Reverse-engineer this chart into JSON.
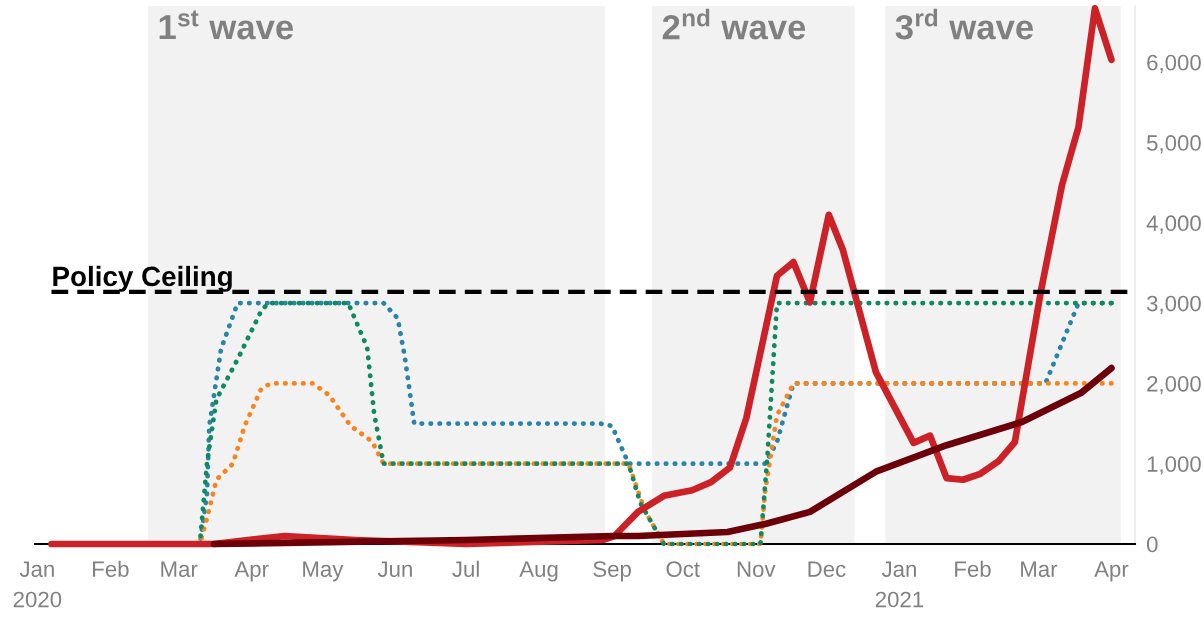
{
  "chart_data": {
    "type": "line",
    "xlim": [
      "2019-12-31",
      "2021-04-11"
    ],
    "xticks": [
      {
        "value": "2020-01-01",
        "label": "Jan\n2020"
      },
      {
        "value": "2020-02-01",
        "label": "Feb"
      },
      {
        "value": "2020-03-01",
        "label": "Mar"
      },
      {
        "value": "2020-04-01",
        "label": "Apr"
      },
      {
        "value": "2020-05-01",
        "label": "May"
      },
      {
        "value": "2020-06-01",
        "label": "Jun"
      },
      {
        "value": "2020-07-01",
        "label": "Jul"
      },
      {
        "value": "2020-08-01",
        "label": "Aug"
      },
      {
        "value": "2020-09-01",
        "label": "Sep"
      },
      {
        "value": "2020-10-01",
        "label": "Oct"
      },
      {
        "value": "2020-11-01",
        "label": "Nov"
      },
      {
        "value": "2020-12-01",
        "label": "Dec"
      },
      {
        "value": "2021-01-01",
        "label": "Jan\n2021"
      },
      {
        "value": "2021-02-01",
        "label": "Feb"
      },
      {
        "value": "2021-03-01",
        "label": "Mar"
      },
      {
        "value": "2021-04-01",
        "label": "Apr"
      }
    ],
    "ylim": [
      0,
      6700
    ],
    "yticks": [
      0,
      {
        "value": 1000,
        "label": "1,000"
      },
      {
        "value": 2000,
        "label": "2,000"
      },
      {
        "value": 3000,
        "label": "3,000"
      },
      {
        "value": 4000,
        "label": "4,000"
      },
      {
        "value": 5000,
        "label": "5,000"
      },
      {
        "value": 6000,
        "label": "6,000"
      }
    ],
    "grid": false,
    "legend": false,
    "bands": [
      {
        "axis": "x",
        "from": "2020-02-17",
        "to": "2020-08-29",
        "label": "1$^{st}$ wave",
        "color": "#f2f2f2"
      },
      {
        "axis": "x",
        "from": "2020-09-18",
        "to": "2020-12-13",
        "label": "2$^{nd}$ wave",
        "color": "#f2f2f2"
      },
      {
        "axis": "x",
        "from": "2020-12-26",
        "to": "2021-04-05",
        "label": "3$^{rd}$ wave",
        "color": "#f2f2f2"
      }
    ],
    "ref_lines": [
      {
        "axis": "y",
        "value": 3140,
        "label": "Policy Ceiling",
        "color": "#000000",
        "line_style": "dashed"
      }
    ],
    "series": [
      {
        "color": "#2a84a8",
        "line_style": "dotted",
        "x": [
          "2020-03-10",
          "2020-03-13",
          "2020-03-14",
          "2020-03-19",
          "2020-03-26",
          "2020-05-27",
          "2020-06-02",
          "2020-06-05",
          "2020-06-09",
          "2020-08-27",
          "2020-09-01",
          "2020-09-08",
          "2020-11-05",
          "2020-11-10",
          "2020-11-17",
          "2021-03-04",
          "2021-03-18",
          "2021-04-01"
        ],
        "values": [
          0,
          610,
          1470,
          2430,
          3000,
          3000,
          2810,
          2330,
          1500,
          1500,
          1470,
          1000,
          1000,
          1270,
          2000,
          2000,
          3000,
          3000
        ]
      },
      {
        "color": "#f5861f",
        "line_style": "dotted",
        "x": [
          "2020-03-10",
          "2020-03-13",
          "2020-03-17",
          "2020-03-24",
          "2020-03-29",
          "2020-04-05",
          "2020-04-09",
          "2020-04-27",
          "2020-05-04",
          "2020-05-13",
          "2020-05-22",
          "2020-05-27",
          "2020-09-08",
          "2020-09-15",
          "2020-09-23",
          "2020-11-03",
          "2020-11-05",
          "2020-11-10",
          "2020-11-17",
          "2021-04-01"
        ],
        "values": [
          0,
          320,
          800,
          1000,
          1470,
          1930,
          2000,
          2000,
          1850,
          1470,
          1280,
          1000,
          1000,
          410,
          0,
          0,
          660,
          1600,
          2000,
          2000
        ]
      },
      {
        "color": "#0f8a5f",
        "line_style": "dotted",
        "x": [
          "2020-03-10",
          "2020-03-13",
          "2020-03-17",
          "2020-03-26",
          "2020-04-05",
          "2020-04-08",
          "2020-05-12",
          "2020-05-20",
          "2020-05-23",
          "2020-05-27",
          "2020-09-08",
          "2020-09-13",
          "2020-09-23",
          "2020-11-03",
          "2020-11-06",
          "2020-11-10",
          "2021-04-01"
        ],
        "values": [
          0,
          1000,
          1800,
          2300,
          2900,
          3000,
          3000,
          2450,
          1620,
          1000,
          1000,
          510,
          0,
          0,
          1120,
          3000,
          3000
        ]
      },
      {
        "color": "#cc2127",
        "line_style": "solid",
        "x": [
          "2020-01-07",
          "2020-03-16",
          "2020-04-15",
          "2020-05-15",
          "2020-07-01",
          "2020-08-28",
          "2020-09-02",
          "2020-09-12",
          "2020-09-23",
          "2020-10-05",
          "2020-10-13",
          "2020-10-21",
          "2020-10-28",
          "2020-11-10",
          "2020-11-17",
          "2020-11-24",
          "2020-12-02",
          "2020-12-08",
          "2020-12-22",
          "2021-01-07",
          "2021-01-14",
          "2021-01-21",
          "2021-01-28",
          "2021-02-04",
          "2021-02-12",
          "2021-02-19",
          "2021-03-02",
          "2021-03-11",
          "2021-03-18",
          "2021-03-25",
          "2021-04-01"
        ],
        "values": [
          0,
          0,
          100,
          50,
          0,
          50,
          100,
          400,
          600,
          670,
          770,
          950,
          1570,
          3340,
          3510,
          3010,
          4100,
          3660,
          2140,
          1260,
          1350,
          820,
          800,
          870,
          1030,
          1270,
          3140,
          4470,
          5190,
          6670,
          6030
        ]
      },
      {
        "color": "#6b0008",
        "line_style": "solid",
        "x": [
          "2020-03-16",
          "2020-07-01",
          "2020-09-01",
          "2020-09-12",
          "2020-10-20",
          "2020-11-05",
          "2020-11-24",
          "2020-12-22",
          "2021-01-21",
          "2021-02-22",
          "2021-03-19",
          "2021-04-01"
        ],
        "values": [
          0,
          50,
          100,
          100,
          150,
          250,
          400,
          900,
          1230,
          1520,
          1880,
          2190
        ]
      }
    ]
  }
}
